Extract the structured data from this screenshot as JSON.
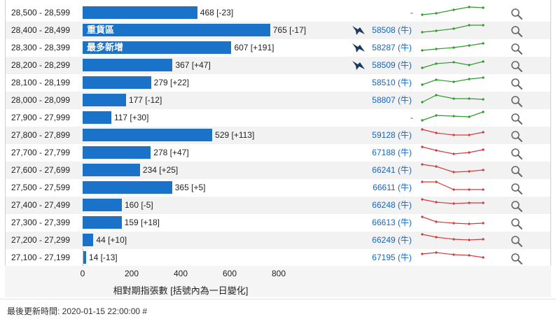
{
  "rows": [
    {
      "range": "28,500 - 28,599",
      "value": 468,
      "change": "[-23]",
      "label": "468 [-23]",
      "tag": "",
      "bull": "",
      "dash": "-",
      "bird": false,
      "trend": "up",
      "spark": [
        9,
        7,
        2,
        -2,
        -1
      ]
    },
    {
      "range": "28,400 - 28,499",
      "value": 765,
      "change": "[-17]",
      "label": "765 [-17]",
      "tag": "重貨區",
      "bull": "58508 (牛)",
      "dash": "",
      "bird": true,
      "trend": "up",
      "spark": [
        9,
        7,
        4,
        -1,
        -1
      ]
    },
    {
      "range": "28,300 - 28,399",
      "value": 607,
      "change": "[+191]",
      "label": "607 [+191]",
      "tag": "最多新增",
      "bull": "58287 (牛)",
      "dash": "",
      "bird": true,
      "trend": "up",
      "spark": [
        10,
        8,
        6,
        3,
        0
      ]
    },
    {
      "range": "28,200 - 28,299",
      "value": 367,
      "change": "[+47]",
      "label": "367 [+47]",
      "tag": "",
      "bull": "58509 (牛)",
      "dash": "",
      "bird": true,
      "trend": "up",
      "spark": [
        10,
        4,
        2,
        6,
        1
      ]
    },
    {
      "range": "28,100 - 28,199",
      "value": 279,
      "change": "[+22]",
      "label": "279 [+22]",
      "tag": "",
      "bull": "58510 (牛)",
      "dash": "",
      "bird": false,
      "trend": "up",
      "spark": [
        9,
        2,
        5,
        1,
        -1
      ]
    },
    {
      "range": "28,000 - 28,099",
      "value": 177,
      "change": "[-12]",
      "label": "177 [-12]",
      "tag": "",
      "bull": "58807 (牛)",
      "dash": "",
      "bird": false,
      "trend": "up",
      "spark": [
        9,
        -1,
        4,
        4,
        5
      ]
    },
    {
      "range": "27,900 - 27,999",
      "value": 117,
      "change": "[+30]",
      "label": "117 [+30]",
      "tag": "",
      "bull": "",
      "dash": "-",
      "bird": false,
      "trend": "up",
      "spark": [
        10,
        3,
        4,
        5,
        -2
      ]
    },
    {
      "range": "27,800 - 27,899",
      "value": 529,
      "change": "[+113]",
      "label": "529 [+113]",
      "tag": "",
      "bull": "59128 (牛)",
      "dash": "",
      "bird": false,
      "trend": "down",
      "spark": [
        -2,
        3,
        6,
        6,
        2
      ]
    },
    {
      "range": "27,700 - 27,799",
      "value": 278,
      "change": "[+47]",
      "label": "278 [+47]",
      "tag": "",
      "bull": "67188 (牛)",
      "dash": "",
      "bird": false,
      "trend": "down",
      "spark": [
        -2,
        3,
        8,
        6,
        2
      ]
    },
    {
      "range": "27,600 - 27,699",
      "value": 234,
      "change": "[+25]",
      "label": "234 [+25]",
      "tag": "",
      "bull": "66241 (牛)",
      "dash": "",
      "bird": false,
      "trend": "down",
      "spark": [
        -2,
        1,
        9,
        8,
        6
      ]
    },
    {
      "range": "27,500 - 27,599",
      "value": 365,
      "change": "[+5]",
      "label": "365 [+5]",
      "tag": "",
      "bull": "66611 (牛)",
      "dash": "",
      "bird": false,
      "trend": "down",
      "spark": [
        -2,
        -2,
        9,
        9,
        9
      ]
    },
    {
      "range": "27,400 - 27,499",
      "value": 160,
      "change": "[-5]",
      "label": "160 [-5]",
      "tag": "",
      "bull": "66248 (牛)",
      "dash": "",
      "bird": false,
      "trend": "down",
      "spark": [
        -2,
        2,
        4,
        3,
        3
      ]
    },
    {
      "range": "27,300 - 27,399",
      "value": 159,
      "change": "[+18]",
      "label": "159 [+18]",
      "tag": "",
      "bull": "66613 (牛)",
      "dash": "",
      "bird": false,
      "trend": "down",
      "spark": [
        -2,
        5,
        7,
        8,
        7
      ]
    },
    {
      "range": "27,200 - 27,299",
      "value": 44,
      "change": "[+10]",
      "label": "44 [+10]",
      "tag": "",
      "bull": "66249 (牛)",
      "dash": "",
      "bird": false,
      "trend": "down",
      "spark": [
        -2,
        2,
        5,
        6,
        5
      ]
    },
    {
      "range": "27,100 - 27,199",
      "value": 14,
      "change": "[-13]",
      "label": "14 [-13]",
      "tag": "",
      "bull": "67195 (牛)",
      "dash": "",
      "bird": false,
      "trend": "down",
      "spark": [
        1,
        -1,
        2,
        3,
        6
      ]
    }
  ],
  "axis": {
    "ticks": [
      "0",
      "200",
      "400",
      "600",
      "800"
    ],
    "max": 800,
    "label": "相對期指張數 [括號內為一日變化]"
  },
  "footer": {
    "text": "最後更新時間: 2020-01-15 22:00:00 #"
  },
  "colors": {
    "bar": "#1a73c8",
    "bull_text": "#1565c0",
    "spark_up": "#2e9d2e",
    "spark_down": "#d63b3b",
    "row_alt": "#f2f2f2",
    "icon": "#1b3a5c"
  },
  "icons": {
    "bird": "bird-icon",
    "search": "search-icon"
  }
}
